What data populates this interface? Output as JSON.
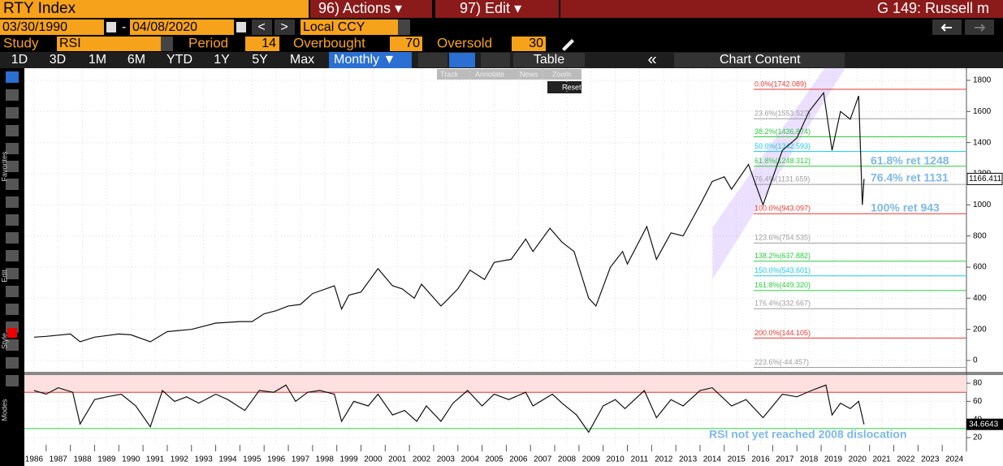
{
  "header": {
    "ticker": "RTY Index",
    "actions": "96) Actions ▾",
    "edit": "97) Edit ▾",
    "page": "G 149: Russell m"
  },
  "toolbar": {
    "start_date": "03/30/1990",
    "dash": "-",
    "end_date": "04/08/2020",
    "prev": "<",
    "next": ">",
    "currency": "Local CCY",
    "periods": [
      "1D",
      "3D",
      "1M",
      "6M",
      "YTD",
      "1Y",
      "5Y",
      "Max"
    ],
    "frequency": "Monthly ▼",
    "table": "Table",
    "collapse": "«",
    "chart_content": "Chart Content",
    "side_labels": [
      "Favorites",
      "Edit",
      "Style",
      "Modes"
    ],
    "overlay": [
      "Track",
      "Annotate",
      "News",
      "Zoom"
    ],
    "reset": "Reset"
  },
  "study": {
    "label": "Study",
    "name": "RSI",
    "period_label": "Period",
    "period": 14,
    "overbought_label": "Overbought",
    "overbought": 70,
    "oversold_label": "Oversold",
    "oversold": 30
  },
  "chart_data": [
    {
      "type": "line",
      "color": "#111111",
      "x": [
        1986,
        1986.5,
        1987.5,
        1987.9,
        1988.5,
        1989.5,
        1990.0,
        1990.8,
        1991.5,
        1992.5,
        1993.5,
        1994.5,
        1995.0,
        1995.5,
        1996.0,
        1996.5,
        1997.0,
        1997.5,
        1998.4,
        1998.7,
        1999.0,
        1999.5,
        2000.2,
        2000.8,
        2001.2,
        2001.7,
        2002.0,
        2002.8,
        2003.0,
        2003.5,
        2004.0,
        2004.6,
        2005.0,
        2005.7,
        2006.3,
        2006.6,
        2007.3,
        2007.8,
        2008.3,
        2008.9,
        2009.2,
        2009.8,
        2010.3,
        2010.5,
        2011.3,
        2011.7,
        2012.3,
        2012.8,
        2013.5,
        2014.0,
        2014.5,
        2014.8,
        2015.5,
        2016.1,
        2016.9,
        2017.5,
        2018.0,
        2018.6,
        2018.95,
        2019.3,
        2019.7,
        2020.05,
        2020.2,
        2020.27
      ],
      "values": [
        150,
        155,
        170,
        120,
        150,
        170,
        165,
        120,
        185,
        200,
        240,
        250,
        250,
        300,
        320,
        350,
        360,
        430,
        480,
        330,
        420,
        440,
        590,
        480,
        460,
        400,
        490,
        350,
        380,
        460,
        580,
        520,
        630,
        650,
        780,
        700,
        850,
        760,
        700,
        400,
        350,
        600,
        700,
        620,
        860,
        650,
        820,
        800,
        1000,
        1150,
        1180,
        1100,
        1260,
        1000,
        1350,
        1430,
        1600,
        1720,
        1350,
        1600,
        1550,
        1700,
        1000,
        1166.411
      ],
      "xlim": [
        1985.6,
        2024.5
      ],
      "xticks": [
        1986,
        1987,
        1988,
        1989,
        1990,
        1991,
        1992,
        1993,
        1994,
        1995,
        1996,
        1997,
        1998,
        1999,
        2000,
        2001,
        2002,
        2003,
        2004,
        2005,
        2006,
        2007,
        2008,
        2009,
        2010,
        2011,
        2012,
        2013,
        2014,
        2015,
        2016,
        2017,
        2018,
        2019,
        2020,
        2021,
        2022,
        2023,
        2024
      ],
      "ylim": [
        -73,
        1878
      ],
      "yticks": [
        0,
        200,
        400,
        600,
        800,
        1000,
        1200,
        1400,
        1600,
        1800
      ],
      "grid": true,
      "fibonacci": [
        {
          "label": "0.0%(1742.089)",
          "value": 1742.089,
          "color": "#e53935"
        },
        {
          "label": "23.6%(1553.527)",
          "value": 1553.527,
          "color": "#9e9e9e"
        },
        {
          "label": "38.2%(1436.874)",
          "value": 1436.874,
          "color": "#2ecc40"
        },
        {
          "label": "50.0%(1342.593)",
          "value": 1342.593,
          "color": "#1ec8e6"
        },
        {
          "label": "61.8%(1248.312)",
          "value": 1248.312,
          "color": "#2ecc40"
        },
        {
          "label": "76.4%(1131.659)",
          "value": 1131.659,
          "color": "#9e9e9e"
        },
        {
          "label": "100.0%(943.097)",
          "value": 943.097,
          "color": "#e53935"
        },
        {
          "label": "123.6%(754.535)",
          "value": 754.535,
          "color": "#9e9e9e"
        },
        {
          "label": "138.2%(637.882)",
          "value": 637.882,
          "color": "#2ecc40"
        },
        {
          "label": "150.0%(543.601)",
          "value": 543.601,
          "color": "#1ec8e6"
        },
        {
          "label": "161.8%(449.320)",
          "value": 449.32,
          "color": "#2ecc40"
        },
        {
          "label": "176.4%(332.667)",
          "value": 332.667,
          "color": "#9e9e9e"
        },
        {
          "label": "200.0%(144.105)",
          "value": 144.105,
          "color": "#e53935"
        },
        {
          "label": "223.6%(-44.457)",
          "value": -44.457,
          "color": "#9e9e9e"
        }
      ],
      "annotations": [
        "61.8% ret 1248",
        "76.4% ret 1131",
        "100% ret 943"
      ]
    },
    {
      "type": "line",
      "color": "#111111",
      "x": [
        1986,
        1986.5,
        1987.0,
        1987.6,
        1987.9,
        1988.5,
        1989.0,
        1989.6,
        1990.2,
        1990.8,
        1991.3,
        1991.8,
        1992.3,
        1992.8,
        1993.5,
        1994.0,
        1994.7,
        1995.3,
        1995.9,
        1996.4,
        1996.8,
        1997.3,
        1997.8,
        1998.4,
        1998.7,
        1999.2,
        1999.8,
        2000.2,
        2000.8,
        2001.3,
        2001.8,
        2002.2,
        2002.8,
        2003.3,
        2003.9,
        2004.5,
        2005.0,
        2005.6,
        2006.3,
        2006.6,
        2007.4,
        2007.8,
        2008.4,
        2008.9,
        2009.5,
        2010.0,
        2010.4,
        2011.2,
        2011.7,
        2012.3,
        2012.8,
        2013.5,
        2014.0,
        2014.8,
        2015.4,
        2016.1,
        2016.9,
        2017.5,
        2018.1,
        2018.7,
        2018.95,
        2019.3,
        2019.7,
        2020.05,
        2020.27
      ],
      "values": [
        72,
        68,
        75,
        70,
        35,
        62,
        65,
        68,
        55,
        32,
        72,
        60,
        65,
        58,
        68,
        62,
        50,
        72,
        70,
        78,
        60,
        70,
        72,
        68,
        38,
        60,
        55,
        68,
        45,
        50,
        38,
        55,
        38,
        58,
        72,
        55,
        68,
        62,
        70,
        55,
        68,
        58,
        45,
        26,
        55,
        62,
        52,
        72,
        42,
        62,
        55,
        72,
        75,
        55,
        62,
        42,
        68,
        65,
        72,
        78,
        45,
        58,
        52,
        60,
        34.6643
      ],
      "ylim": [
        12,
        89
      ],
      "yticks": [
        20,
        40,
        60,
        80
      ],
      "annotation": "RSI not yet reached 2008 dislocation"
    }
  ]
}
